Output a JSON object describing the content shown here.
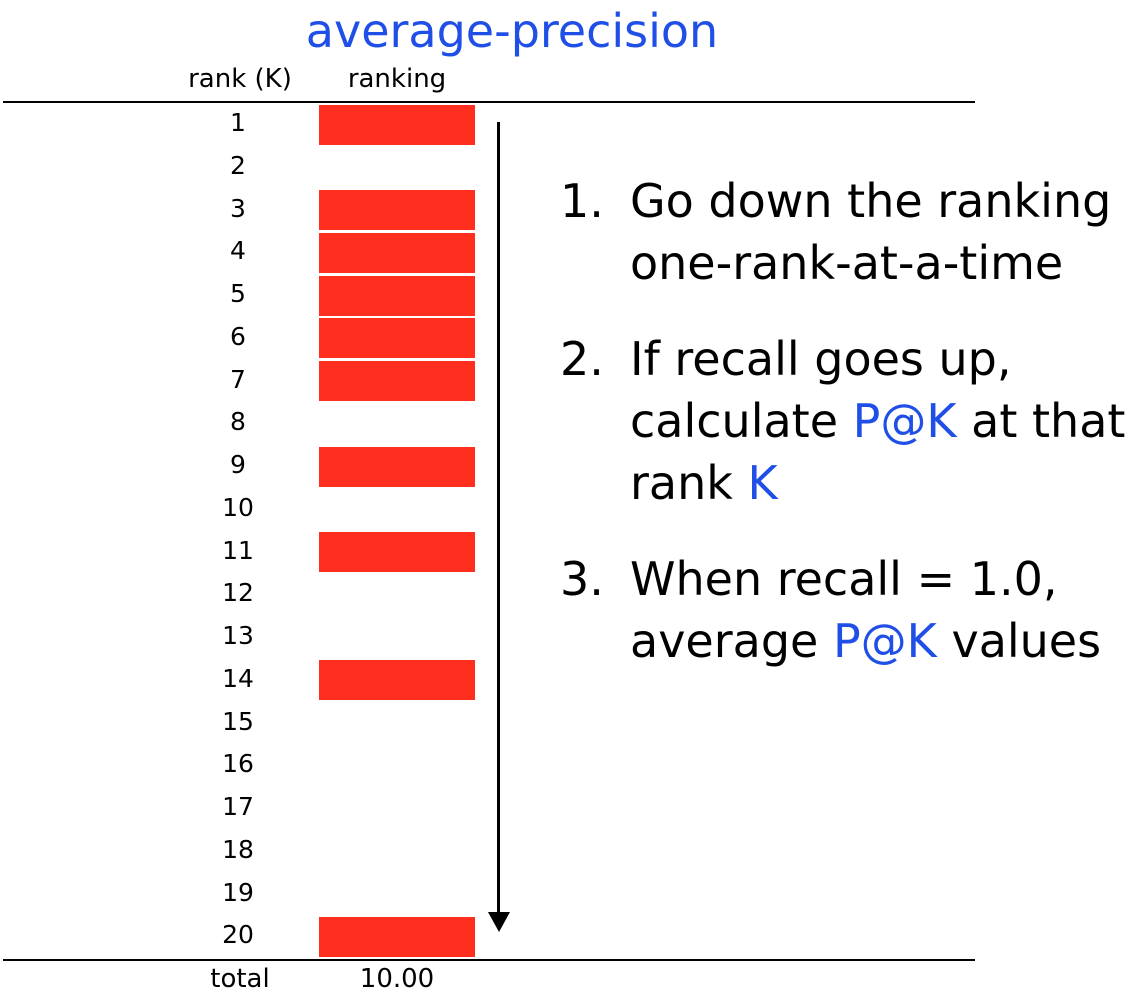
{
  "title": "average-precision",
  "headers": {
    "rank": "rank (K)",
    "ranking": "ranking"
  },
  "ranks": [
    "1",
    "2",
    "3",
    "4",
    "5",
    "6",
    "7",
    "8",
    "9",
    "10",
    "11",
    "12",
    "13",
    "14",
    "15",
    "16",
    "17",
    "18",
    "19",
    "20"
  ],
  "relevant": [
    true,
    false,
    true,
    true,
    true,
    true,
    true,
    false,
    true,
    false,
    true,
    false,
    false,
    true,
    false,
    false,
    false,
    false,
    false,
    true
  ],
  "total": {
    "label": "total",
    "value": "10.00"
  },
  "steps": [
    {
      "num": "1.",
      "parts": [
        {
          "text": "Go down the ranking one-rank-at-a-time",
          "hl": false
        }
      ]
    },
    {
      "num": "2.",
      "parts": [
        {
          "text": "If recall goes up, calculate ",
          "hl": false
        },
        {
          "text": "P@K",
          "hl": true
        },
        {
          "text": " at that rank ",
          "hl": false
        },
        {
          "text": "K",
          "hl": true
        }
      ]
    },
    {
      "num": "3.",
      "parts": [
        {
          "text": "When recall = 1.0, average ",
          "hl": false
        },
        {
          "text": "P@K",
          "hl": true
        },
        {
          "text": " values",
          "hl": false
        }
      ]
    }
  ],
  "colors": {
    "bar": "#ff2e1f",
    "highlight": "#1f4fe6"
  }
}
